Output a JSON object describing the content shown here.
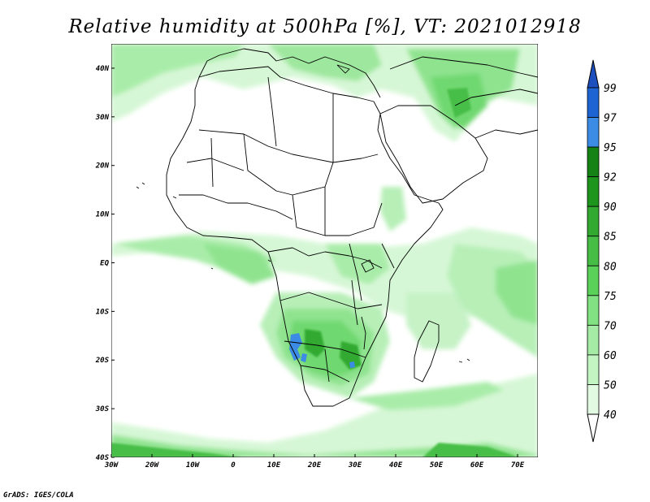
{
  "title": "Relative humidity at 500hPa [%], VT: 2021012918",
  "credit": "GrADS: IGES/COLA",
  "map": {
    "lon_range": [
      -30,
      75
    ],
    "lat_range": [
      -40,
      45
    ],
    "lon_ticks": [
      "30W",
      "20W",
      "10W",
      "0",
      "10E",
      "20E",
      "30E",
      "40E",
      "50E",
      "60E",
      "70E"
    ],
    "lat_ticks": [
      "40N",
      "30N",
      "20N",
      "10N",
      "EQ",
      "10S",
      "20S",
      "30S",
      "40S"
    ]
  },
  "colorbar": {
    "labels": [
      "99",
      "97",
      "95",
      "92",
      "90",
      "85",
      "80",
      "75",
      "70",
      "60",
      "50",
      "40"
    ],
    "colors": [
      "#1e64d2",
      "#3c8ce6",
      "#148214",
      "#1e961e",
      "#32aa32",
      "#46be46",
      "#5ad25a",
      "#82e182",
      "#a5eba5",
      "#c3f5c3",
      "#e1fae1"
    ],
    "top_arrow_color": "#1e4fbe"
  }
}
